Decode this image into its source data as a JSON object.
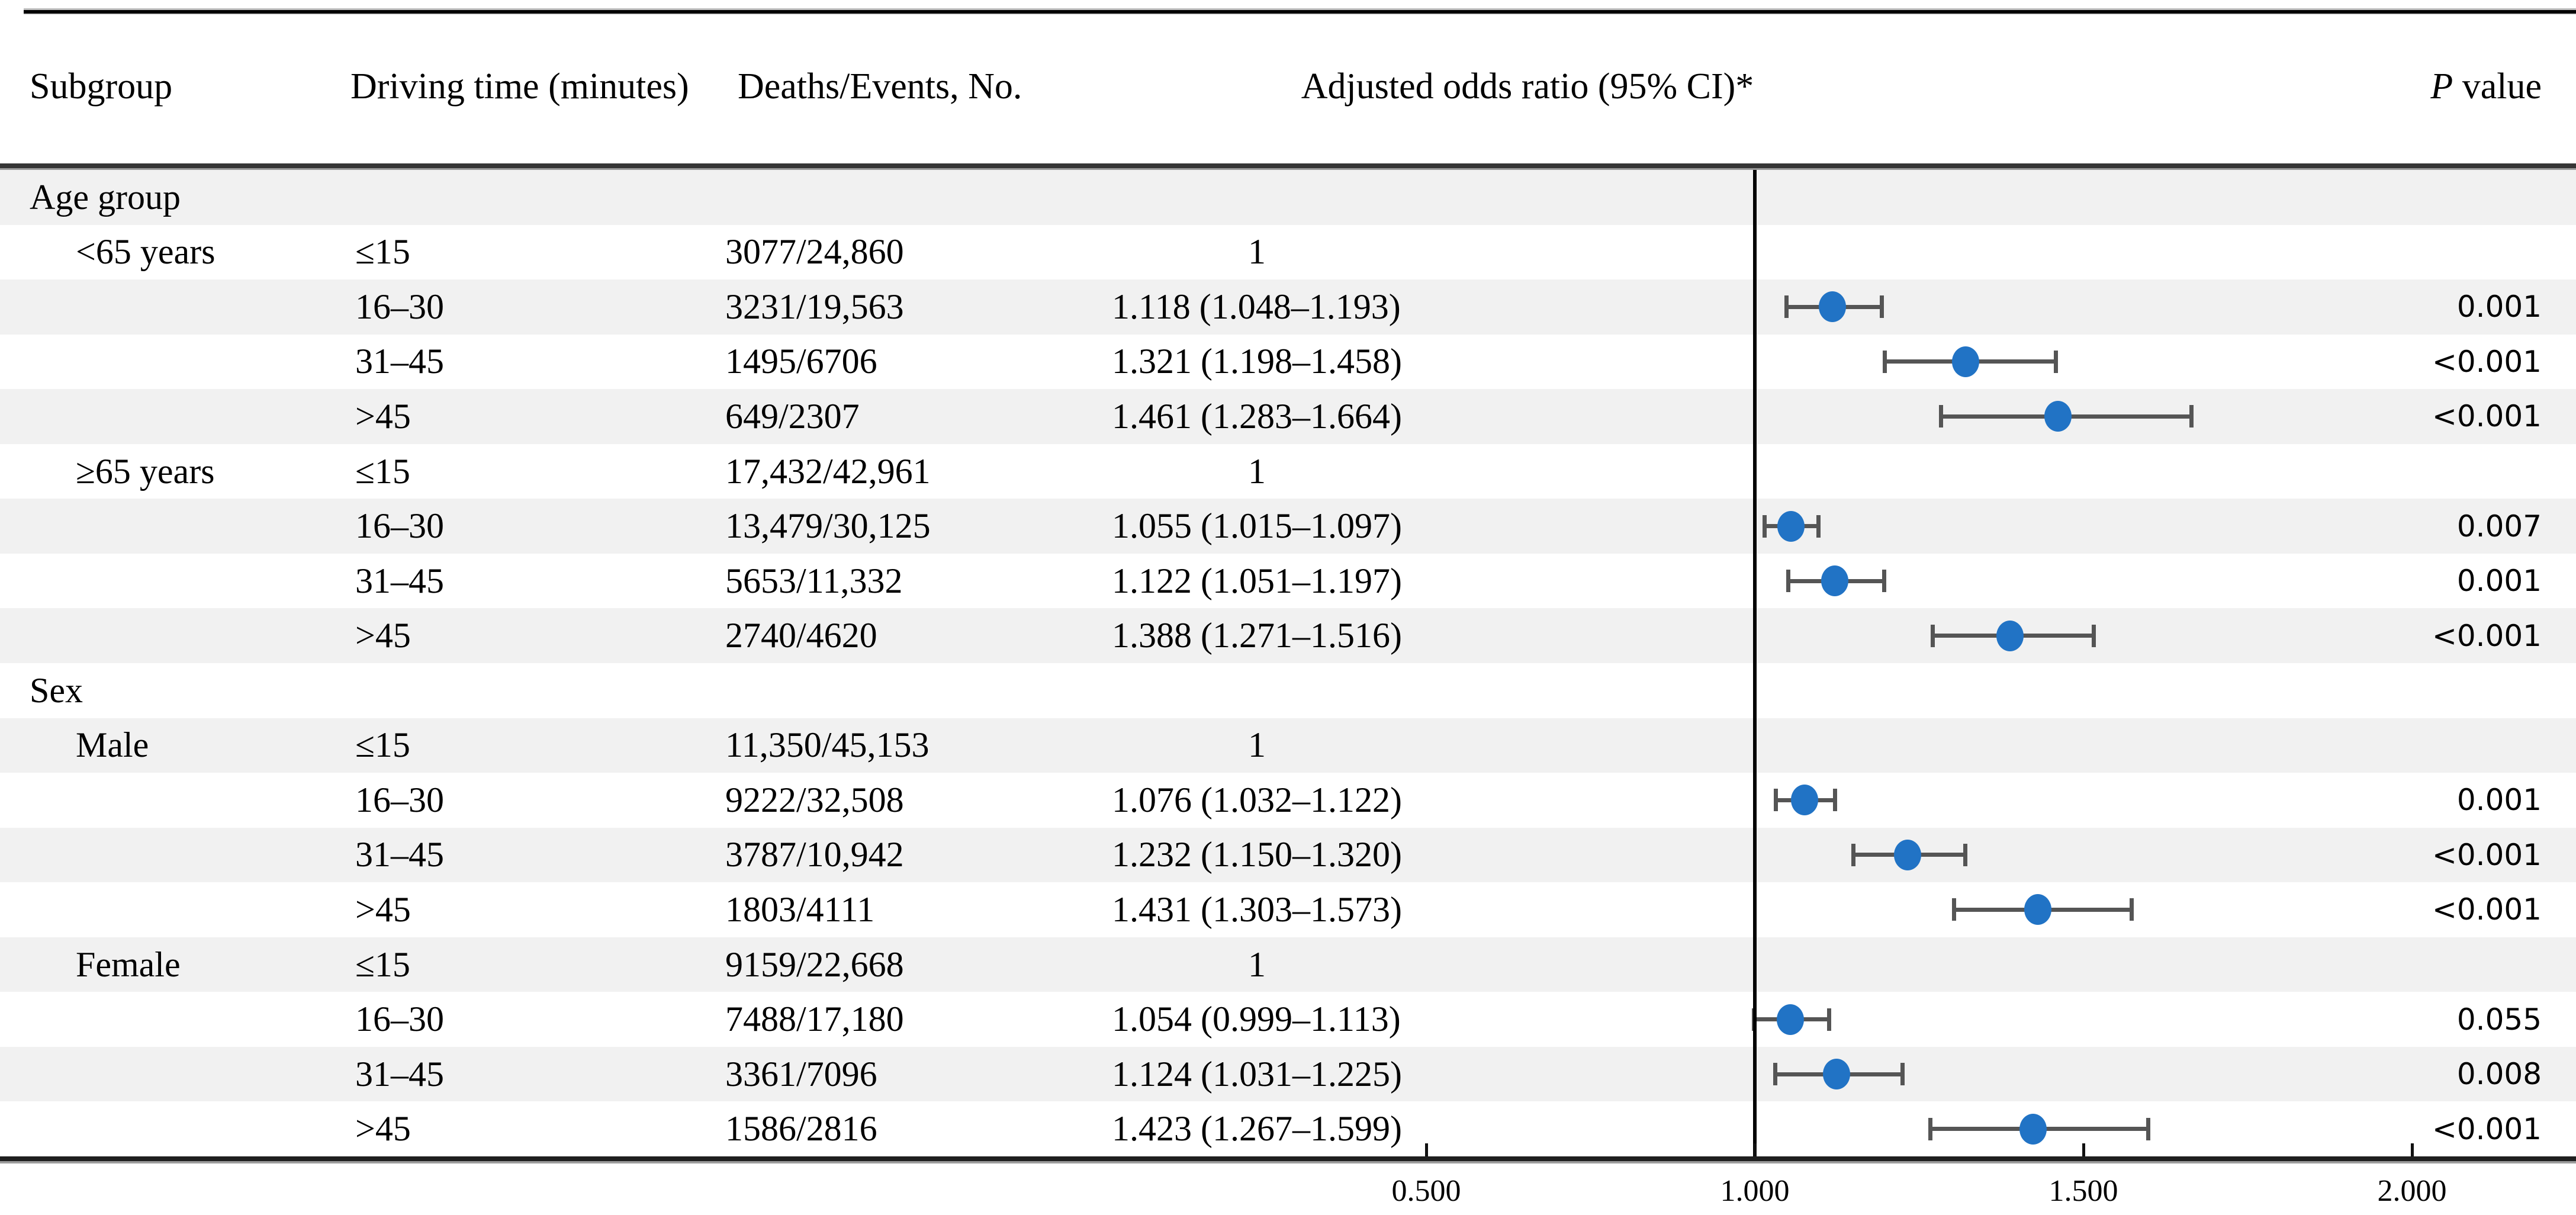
{
  "figure": {
    "header": {
      "subgroup": "Subgroup",
      "driving_time": "Driving time (minutes)",
      "deaths_events": "Deaths/Events, No.",
      "odds_ratio": "Adjusted odds ratio (95% CI)*",
      "p_italic": "P",
      "p_rest": " value"
    },
    "colors": {
      "marker_blue": "#2173c5",
      "whisker_gray": "#555555",
      "row_band_gray": "#f1f1f1",
      "rule_dark": "#262626"
    }
  },
  "chart_data": {
    "type": "scatter",
    "subtype": "forest-plot",
    "title": "Adjusted odds ratio (95% CI)*",
    "xlabel": "Adjusted odds ratio (95% CI)",
    "x_ticks": [
      0.5,
      1.0,
      1.5,
      2.0
    ],
    "x_tick_labels": [
      "0.500",
      "1.000",
      "1.500",
      "2.000"
    ],
    "xlim": [
      0.25,
      2.35
    ],
    "reference_line_x": 1.0,
    "grid": false,
    "legend": false,
    "groups": [
      {
        "name": "Age group",
        "levels": [
          {
            "level": "<65 years",
            "rows": [
              {
                "driving_time": "≤15",
                "deaths_events": "3077/24,860",
                "or": 1,
                "ci": null,
                "or_ci_text": "1",
                "p": ""
              },
              {
                "driving_time": "16–30",
                "deaths_events": "3231/19,563",
                "or": 1.118,
                "ci": [
                  1.048,
                  1.193
                ],
                "or_ci_text": "1.118 (1.048–1.193)",
                "p": "0.001"
              },
              {
                "driving_time": "31–45",
                "deaths_events": "1495/6706",
                "or": 1.321,
                "ci": [
                  1.198,
                  1.458
                ],
                "or_ci_text": "1.321 (1.198–1.458)",
                "p": "<0.001"
              },
              {
                "driving_time": ">45",
                "deaths_events": "649/2307",
                "or": 1.461,
                "ci": [
                  1.283,
                  1.664
                ],
                "or_ci_text": "1.461 (1.283–1.664)",
                "p": "<0.001"
              }
            ]
          },
          {
            "level": "≥65 years",
            "rows": [
              {
                "driving_time": "≤15",
                "deaths_events": "17,432/42,961",
                "or": 1,
                "ci": null,
                "or_ci_text": "1",
                "p": ""
              },
              {
                "driving_time": "16–30",
                "deaths_events": "13,479/30,125",
                "or": 1.055,
                "ci": [
                  1.015,
                  1.097
                ],
                "or_ci_text": "1.055 (1.015–1.097)",
                "p": "0.007"
              },
              {
                "driving_time": "31–45",
                "deaths_events": "5653/11,332",
                "or": 1.122,
                "ci": [
                  1.051,
                  1.197
                ],
                "or_ci_text": "1.122 (1.051–1.197)",
                "p": "0.001"
              },
              {
                "driving_time": ">45",
                "deaths_events": "2740/4620",
                "or": 1.388,
                "ci": [
                  1.271,
                  1.516
                ],
                "or_ci_text": "1.388 (1.271–1.516)",
                "p": "<0.001"
              }
            ]
          }
        ]
      },
      {
        "name": "Sex",
        "levels": [
          {
            "level": "Male",
            "rows": [
              {
                "driving_time": "≤15",
                "deaths_events": "11,350/45,153",
                "or": 1,
                "ci": null,
                "or_ci_text": "1",
                "p": ""
              },
              {
                "driving_time": "16–30",
                "deaths_events": "9222/32,508",
                "or": 1.076,
                "ci": [
                  1.032,
                  1.122
                ],
                "or_ci_text": "1.076 (1.032–1.122)",
                "p": "0.001"
              },
              {
                "driving_time": "31–45",
                "deaths_events": "3787/10,942",
                "or": 1.232,
                "ci": [
                  1.15,
                  1.32
                ],
                "or_ci_text": "1.232 (1.150–1.320)",
                "p": "<0.001"
              },
              {
                "driving_time": ">45",
                "deaths_events": "1803/4111",
                "or": 1.431,
                "ci": [
                  1.303,
                  1.573
                ],
                "or_ci_text": "1.431 (1.303–1.573)",
                "p": "<0.001"
              }
            ]
          },
          {
            "level": "Female",
            "rows": [
              {
                "driving_time": "≤15",
                "deaths_events": "9159/22,668",
                "or": 1,
                "ci": null,
                "or_ci_text": "1",
                "p": ""
              },
              {
                "driving_time": "16–30",
                "deaths_events": "7488/17,180",
                "or": 1.054,
                "ci": [
                  0.999,
                  1.113
                ],
                "or_ci_text": "1.054 (0.999–1.113)",
                "p": "0.055"
              },
              {
                "driving_time": "31–45",
                "deaths_events": "3361/7096",
                "or": 1.124,
                "ci": [
                  1.031,
                  1.225
                ],
                "or_ci_text": "1.124 (1.031–1.225)",
                "p": "0.008"
              },
              {
                "driving_time": ">45",
                "deaths_events": "1586/2816",
                "or": 1.423,
                "ci": [
                  1.267,
                  1.599
                ],
                "or_ci_text": "1.423 (1.267–1.599)",
                "p": "<0.001"
              }
            ]
          }
        ]
      }
    ]
  }
}
